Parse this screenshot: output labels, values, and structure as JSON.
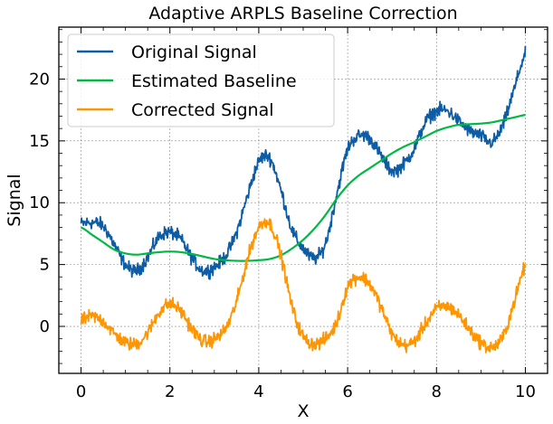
{
  "chart_data": {
    "type": "line",
    "title": "Adaptive ARPLS Baseline Correction",
    "xlabel": "X",
    "ylabel": "Signal",
    "xlim": [
      -0.5,
      10.5
    ],
    "ylim": [
      -3.8,
      24.2
    ],
    "xticks": [
      0,
      2,
      4,
      6,
      8,
      10
    ],
    "yticks": [
      0,
      5,
      10,
      15,
      20
    ],
    "grid": true,
    "legend_position": "upper-left",
    "series": [
      {
        "name": "Original Signal",
        "color": "#0C5DA5",
        "x": [
          0,
          0.25,
          0.5,
          0.75,
          1.0,
          1.25,
          1.5,
          1.75,
          2.0,
          2.25,
          2.5,
          2.75,
          3.0,
          3.25,
          3.5,
          3.75,
          4.0,
          4.25,
          4.5,
          4.75,
          5.0,
          5.25,
          5.5,
          5.75,
          6.0,
          6.25,
          6.5,
          6.75,
          7.0,
          7.25,
          7.5,
          7.75,
          8.0,
          8.25,
          8.5,
          8.75,
          9.0,
          9.25,
          9.5,
          9.75,
          10.0
        ],
        "values": [
          8.3,
          8.4,
          8.1,
          6.6,
          5.0,
          4.5,
          5.6,
          7.2,
          7.6,
          7.0,
          5.5,
          4.5,
          4.8,
          5.7,
          7.6,
          10.6,
          13.3,
          13.6,
          11.0,
          7.8,
          6.3,
          5.5,
          6.7,
          10.6,
          14.3,
          15.4,
          15.2,
          13.8,
          12.6,
          13.1,
          14.4,
          16.5,
          17.4,
          17.4,
          16.6,
          15.8,
          15.4,
          14.9,
          16.3,
          19.2,
          22.0
        ]
      },
      {
        "name": "Estimated Baseline",
        "color": "#00B945",
        "x": [
          0,
          0.25,
          0.5,
          0.75,
          1.0,
          1.25,
          1.5,
          1.75,
          2.0,
          2.25,
          2.5,
          2.75,
          3.0,
          3.25,
          3.5,
          3.75,
          4.0,
          4.25,
          4.5,
          4.75,
          5.0,
          5.25,
          5.5,
          5.75,
          6.0,
          6.25,
          6.5,
          6.75,
          7.0,
          7.25,
          7.5,
          7.75,
          8.0,
          8.25,
          8.5,
          8.75,
          9.0,
          9.25,
          9.5,
          9.75,
          10.0
        ],
        "values": [
          8.0,
          7.4,
          6.8,
          6.2,
          5.9,
          5.8,
          5.9,
          6.0,
          6.05,
          6.0,
          5.85,
          5.65,
          5.45,
          5.35,
          5.3,
          5.3,
          5.35,
          5.45,
          5.75,
          6.3,
          7.0,
          7.9,
          9.0,
          10.3,
          11.4,
          12.2,
          12.8,
          13.4,
          14.0,
          14.5,
          14.9,
          15.35,
          15.8,
          16.1,
          16.3,
          16.35,
          16.4,
          16.5,
          16.7,
          16.9,
          17.1
        ]
      },
      {
        "name": "Corrected Signal",
        "color": "#FF9500",
        "x": [
          0,
          0.25,
          0.5,
          0.75,
          1.0,
          1.25,
          1.5,
          1.75,
          2.0,
          2.25,
          2.5,
          2.75,
          3.0,
          3.25,
          3.5,
          3.75,
          4.0,
          4.25,
          4.5,
          4.75,
          5.0,
          5.25,
          5.5,
          5.75,
          6.0,
          6.25,
          6.5,
          6.75,
          7.0,
          7.25,
          7.5,
          7.75,
          8.0,
          8.25,
          8.5,
          8.75,
          9.0,
          9.25,
          9.5,
          9.75,
          10.0
        ],
        "values": [
          0.5,
          0.8,
          0.4,
          -0.6,
          -1.3,
          -1.4,
          -0.5,
          1.1,
          1.8,
          1.2,
          -0.2,
          -1.2,
          -1.0,
          -0.2,
          2.0,
          5.5,
          8.0,
          8.3,
          5.7,
          1.6,
          -0.8,
          -1.4,
          -1.0,
          0.3,
          3.2,
          4.0,
          3.4,
          1.6,
          -0.6,
          -1.5,
          -1.2,
          0.2,
          1.4,
          1.6,
          0.9,
          -0.3,
          -1.3,
          -1.7,
          -0.8,
          2.0,
          4.9
        ]
      }
    ]
  }
}
